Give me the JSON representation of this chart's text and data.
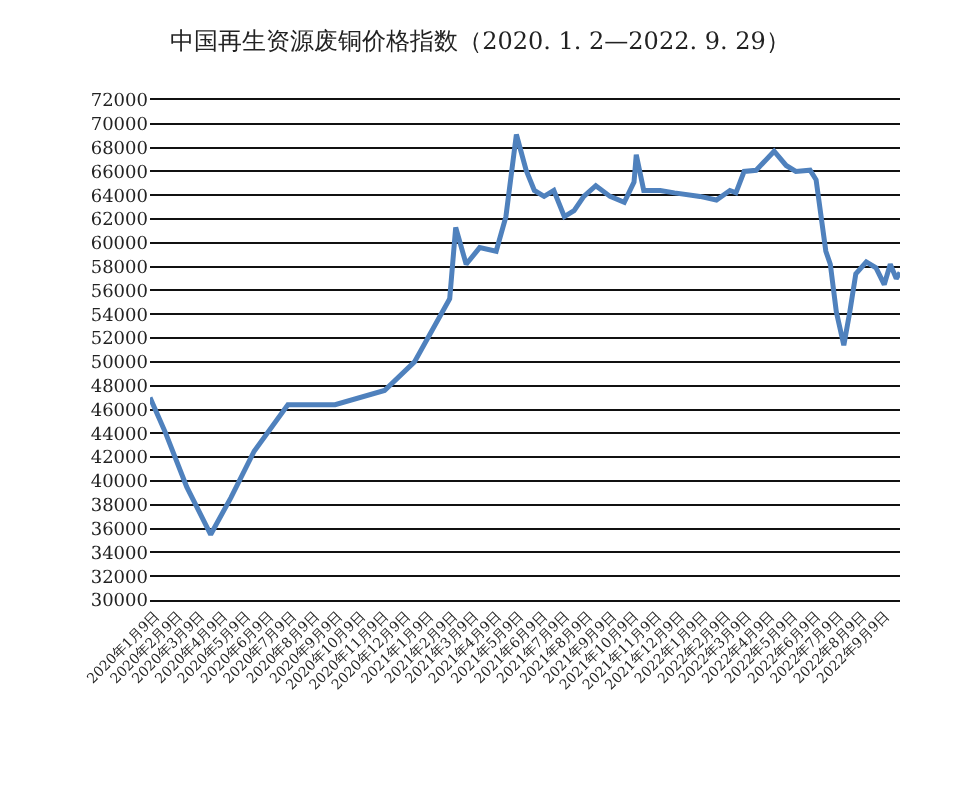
{
  "chart_data": {
    "type": "line",
    "title": "中国再生资源废铜价格指数（2020. 1. 2—2022. 9. 29）",
    "x": [
      "2020-01-02",
      "2020-01-23",
      "2020-02-20",
      "2020-03-23",
      "2020-04-19",
      "2020-05-20",
      "2020-07-04",
      "2020-09-05",
      "2020-11-10",
      "2020-12-20",
      "2021-02-05",
      "2021-02-13",
      "2021-02-27",
      "2021-03-17",
      "2021-04-08",
      "2021-04-21",
      "2021-05-05",
      "2021-05-18",
      "2021-05-29",
      "2021-06-11",
      "2021-06-24",
      "2021-07-08",
      "2021-07-21",
      "2021-08-03",
      "2021-08-19",
      "2021-09-07",
      "2021-09-26",
      "2021-10-09",
      "2021-10-12",
      "2021-10-22",
      "2021-11-13",
      "2021-12-02",
      "2022-01-05",
      "2022-01-27",
      "2022-02-14",
      "2022-02-22",
      "2022-03-05",
      "2022-03-21",
      "2022-04-14",
      "2022-04-30",
      "2022-05-13",
      "2022-06-01",
      "2022-06-09",
      "2022-06-22",
      "2022-06-28",
      "2022-07-06",
      "2022-07-16",
      "2022-07-24",
      "2022-08-01",
      "2022-08-15",
      "2022-08-28",
      "2022-09-08",
      "2022-09-16",
      "2022-09-24",
      "2022-09-29"
    ],
    "series": [
      {
        "color": "#4f81bd",
        "values": [
          47000,
          44000,
          39500,
          35500,
          38600,
          42500,
          46400,
          46400,
          47600,
          50000,
          55300,
          61300,
          58200,
          59600,
          59300,
          62200,
          69100,
          66100,
          64400,
          63900,
          64400,
          62200,
          62700,
          63900,
          64800,
          63900,
          63400,
          65100,
          67400,
          64400,
          64400,
          64200,
          63900,
          63600,
          64400,
          64200,
          66000,
          66100,
          67700,
          66500,
          66000,
          66100,
          65300,
          59300,
          58200,
          54200,
          51400,
          54200,
          57400,
          58400,
          57900,
          56500,
          58200,
          57000,
          57500
        ]
      }
    ],
    "xlim": [
      "2020-01-02",
      "2022-09-29"
    ],
    "xticks": [
      {
        "value": "2020-01-09",
        "label": "2020年1月9日"
      },
      {
        "value": "2020-02-09",
        "label": "2020年2月9日"
      },
      {
        "value": "2020-03-09",
        "label": "2020年3月9日"
      },
      {
        "value": "2020-04-09",
        "label": "2020年4月9日"
      },
      {
        "value": "2020-05-09",
        "label": "2020年5月9日"
      },
      {
        "value": "2020-06-09",
        "label": "2020年6月9日"
      },
      {
        "value": "2020-07-09",
        "label": "2020年7月9日"
      },
      {
        "value": "2020-08-09",
        "label": "2020年8月9日"
      },
      {
        "value": "2020-09-09",
        "label": "2020年9月9日"
      },
      {
        "value": "2020-10-09",
        "label": "2020年10月9日"
      },
      {
        "value": "2020-11-09",
        "label": "2020年11月9日"
      },
      {
        "value": "2020-12-09",
        "label": "2020年12月9日"
      },
      {
        "value": "2021-01-09",
        "label": "2021年1月9日"
      },
      {
        "value": "2021-02-09",
        "label": "2021年2月9日"
      },
      {
        "value": "2021-03-09",
        "label": "2021年3月9日"
      },
      {
        "value": "2021-04-09",
        "label": "2021年4月9日"
      },
      {
        "value": "2021-05-09",
        "label": "2021年5月9日"
      },
      {
        "value": "2021-06-09",
        "label": "2021年6月9日"
      },
      {
        "value": "2021-07-09",
        "label": "2021年7月9日"
      },
      {
        "value": "2021-08-09",
        "label": "2021年8月9日"
      },
      {
        "value": "2021-09-09",
        "label": "2021年9月9日"
      },
      {
        "value": "2021-10-09",
        "label": "2021年10月9日"
      },
      {
        "value": "2021-11-09",
        "label": "2021年11月9日"
      },
      {
        "value": "2021-12-09",
        "label": "2021年12月9日"
      },
      {
        "value": "2022-01-09",
        "label": "2022年1月9日"
      },
      {
        "value": "2022-02-09",
        "label": "2022年2月9日"
      },
      {
        "value": "2022-03-09",
        "label": "2022年3月9日"
      },
      {
        "value": "2022-04-09",
        "label": "2022年4月9日"
      },
      {
        "value": "2022-05-09",
        "label": "2022年5月9日"
      },
      {
        "value": "2022-06-09",
        "label": "2022年6月9日"
      },
      {
        "value": "2022-07-09",
        "label": "2022年7月9日"
      },
      {
        "value": "2022-08-09",
        "label": "2022年8月9日"
      },
      {
        "value": "2022-09-09",
        "label": "2022年9月9日"
      }
    ],
    "ylim": [
      30000,
      72000
    ],
    "yticks": [
      30000,
      32000,
      34000,
      36000,
      38000,
      40000,
      42000,
      44000,
      46000,
      48000,
      50000,
      52000,
      54000,
      56000,
      58000,
      60000,
      62000,
      64000,
      66000,
      68000,
      70000,
      72000
    ],
    "grid": "y",
    "marker": "none",
    "line_style": "solid"
  }
}
